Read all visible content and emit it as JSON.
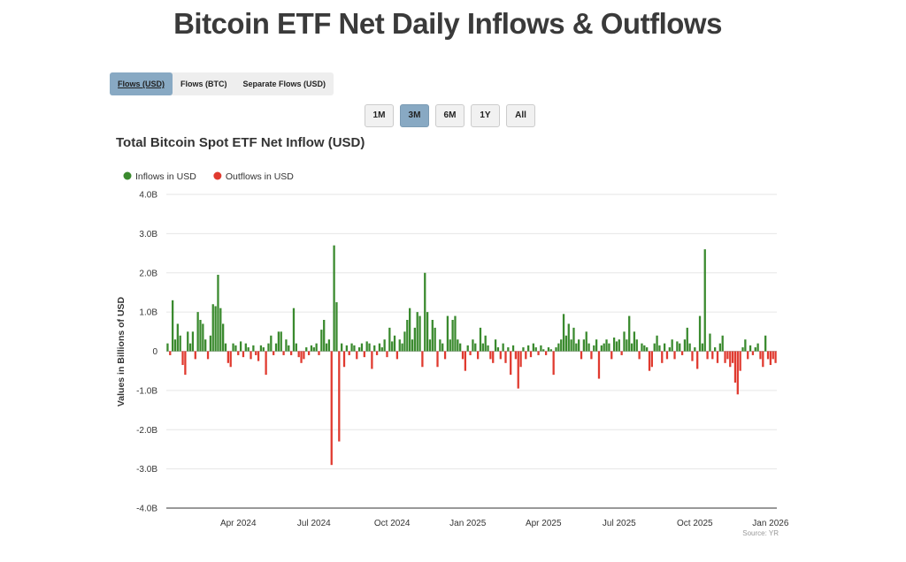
{
  "header": {
    "title": "Bitcoin ETF Net Daily Inflows & Outflows"
  },
  "tabs": {
    "items": [
      "Flows (USD)",
      "Flows (BTC)",
      "Separate Flows (USD)"
    ],
    "active": 0
  },
  "ranges": {
    "items": [
      "1M",
      "3M",
      "6M",
      "1Y",
      "All"
    ],
    "active": 1
  },
  "chart_data": {
    "type": "bar",
    "title": "Total Bitcoin Spot ETF Net Inflow (USD)",
    "y_label": "Values in Billions of USD",
    "source": "Source: YR",
    "legend": [
      {
        "name": "Inflows in USD",
        "color": "#3a8a2e"
      },
      {
        "name": "Outflows in USD",
        "color": "#e03a2f"
      }
    ],
    "ylim": [
      -4,
      4
    ],
    "yticks": [
      {
        "value": -4,
        "label": "-4.0B"
      },
      {
        "value": -3,
        "label": "-3.0B"
      },
      {
        "value": -2,
        "label": "-2.0B"
      },
      {
        "value": -1,
        "label": "-1.0B"
      },
      0,
      {
        "value": 1,
        "label": "1.0B"
      },
      {
        "value": 2,
        "label": "2.0B"
      },
      {
        "value": 3,
        "label": "3.0B"
      },
      {
        "value": 4,
        "label": "4.0B"
      }
    ],
    "grid": true,
    "categories": [
      null,
      null,
      null,
      null,
      null,
      null,
      null,
      null,
      null,
      null,
      null,
      null,
      null,
      null,
      null,
      null,
      null,
      null,
      null,
      null,
      null,
      null,
      null,
      null,
      null,
      null,
      null,
      null,
      "Apr 2024",
      null,
      null,
      null,
      null,
      null,
      null,
      null,
      null,
      null,
      null,
      null,
      null,
      null,
      null,
      null,
      null,
      null,
      null,
      null,
      null,
      null,
      null,
      null,
      null,
      null,
      null,
      null,
      null,
      null,
      "Jul 2024",
      null,
      null,
      null,
      null,
      null,
      null,
      null,
      null,
      null,
      null,
      null,
      null,
      null,
      null,
      null,
      null,
      null,
      null,
      null,
      null,
      null,
      null,
      null,
      null,
      null,
      null,
      null,
      null,
      null,
      null,
      "Oct 2024",
      null,
      null,
      null,
      null,
      null,
      null,
      null,
      null,
      null,
      null,
      null,
      null,
      null,
      null,
      null,
      null,
      null,
      null,
      null,
      null,
      null,
      null,
      null,
      null,
      null,
      null,
      null,
      null,
      null,
      "Jan 2025",
      null,
      null,
      null,
      null,
      null,
      null,
      null,
      null,
      null,
      null,
      null,
      null,
      null,
      null,
      null,
      null,
      null,
      null,
      null,
      null,
      null,
      null,
      null,
      null,
      null,
      null,
      null,
      null,
      null,
      "Apr 2025",
      null,
      null,
      null,
      null,
      null,
      null,
      null,
      null,
      null,
      null,
      null,
      null,
      null,
      null,
      null,
      null,
      null,
      null,
      null,
      null,
      null,
      null,
      null,
      null,
      null,
      null,
      null,
      null,
      null,
      "Jul 2025",
      null,
      null,
      null,
      null,
      null,
      null,
      null,
      null,
      null,
      null,
      null,
      null,
      null,
      null,
      null,
      null,
      null,
      null,
      null,
      null,
      null,
      null,
      null,
      null,
      null,
      null,
      null,
      null,
      null,
      "Oct 2025",
      null,
      null,
      null,
      null,
      null,
      null,
      null,
      null,
      null,
      null,
      null,
      null,
      null,
      null,
      null,
      null,
      null,
      null,
      null,
      null,
      null,
      null,
      null,
      null,
      null,
      null,
      null,
      null,
      null,
      "Jan 2026",
      null,
      null
    ],
    "values": [
      0.2,
      -0.1,
      1.3,
      0.3,
      0.7,
      0.4,
      -0.35,
      -0.6,
      0.5,
      0.2,
      0.5,
      -0.2,
      1.0,
      0.8,
      0.7,
      0.3,
      -0.2,
      0.4,
      1.2,
      1.15,
      1.95,
      1.1,
      0.7,
      0.2,
      -0.3,
      -0.4,
      0.2,
      0.15,
      -0.1,
      0.25,
      -0.15,
      0.2,
      0.1,
      -0.2,
      0.15,
      -0.1,
      -0.25,
      0.15,
      0.1,
      -0.6,
      0.2,
      0.4,
      -0.1,
      0.2,
      0.5,
      0.5,
      -0.1,
      0.3,
      0.15,
      -0.1,
      1.1,
      0.2,
      -0.15,
      -0.3,
      -0.2,
      0.1,
      -0.1,
      0.15,
      0.1,
      0.2,
      -0.1,
      0.55,
      0.8,
      0.2,
      0.3,
      -2.9,
      2.7,
      1.25,
      -2.3,
      0.2,
      -0.4,
      0.15,
      -0.1,
      0.2,
      0.15,
      -0.2,
      0.1,
      0.2,
      -0.15,
      0.25,
      0.2,
      -0.45,
      0.15,
      -0.1,
      0.2,
      0.1,
      0.3,
      -0.15,
      0.6,
      0.25,
      0.4,
      -0.2,
      0.3,
      0.2,
      0.5,
      0.8,
      1.1,
      0.3,
      0.6,
      1.0,
      0.9,
      -0.4,
      2.0,
      1.0,
      0.3,
      0.8,
      0.6,
      -0.4,
      0.3,
      0.2,
      -0.2,
      0.9,
      0.3,
      0.8,
      0.9,
      0.3,
      0.2,
      -0.2,
      -0.5,
      0.15,
      -0.1,
      0.3,
      0.2,
      -0.2,
      0.6,
      0.2,
      0.4,
      0.15,
      -0.2,
      -0.3,
      0.3,
      0.1,
      -0.2,
      0.2,
      -0.3,
      0.1,
      -0.6,
      0.15,
      -0.2,
      -0.95,
      -0.4,
      0.1,
      -0.2,
      0.15,
      -0.15,
      0.2,
      0.1,
      -0.1,
      0.15,
      0.05,
      -0.1,
      0.1,
      0.05,
      -0.6,
      0.1,
      0.2,
      0.3,
      0.95,
      0.4,
      0.7,
      0.3,
      0.6,
      0.2,
      0.3,
      -0.2,
      0.3,
      0.5,
      0.2,
      -0.2,
      0.15,
      0.3,
      -0.7,
      0.15,
      0.2,
      0.3,
      0.2,
      -0.2,
      0.35,
      0.25,
      0.3,
      -0.1,
      0.5,
      0.3,
      0.9,
      0.2,
      0.5,
      0.3,
      -0.2,
      0.2,
      0.15,
      0.1,
      -0.5,
      -0.4,
      0.2,
      0.4,
      0.15,
      -0.3,
      0.2,
      -0.2,
      0.1,
      0.3,
      -0.2,
      0.25,
      0.2,
      -0.1,
      0.3,
      0.6,
      0.2,
      -0.25,
      0.1,
      -0.45,
      0.9,
      0.2,
      2.6,
      -0.2,
      0.45,
      -0.2,
      0.1,
      -0.3,
      0.2,
      0.4,
      -0.3,
      -0.2,
      -0.4,
      -0.3,
      -0.8,
      -1.1,
      -0.5,
      0.1,
      0.3,
      -0.2,
      0.15,
      -0.1,
      0.1,
      0.2,
      -0.2,
      -0.4,
      0.4,
      -0.2,
      -0.35,
      -0.2,
      -0.3
    ]
  }
}
